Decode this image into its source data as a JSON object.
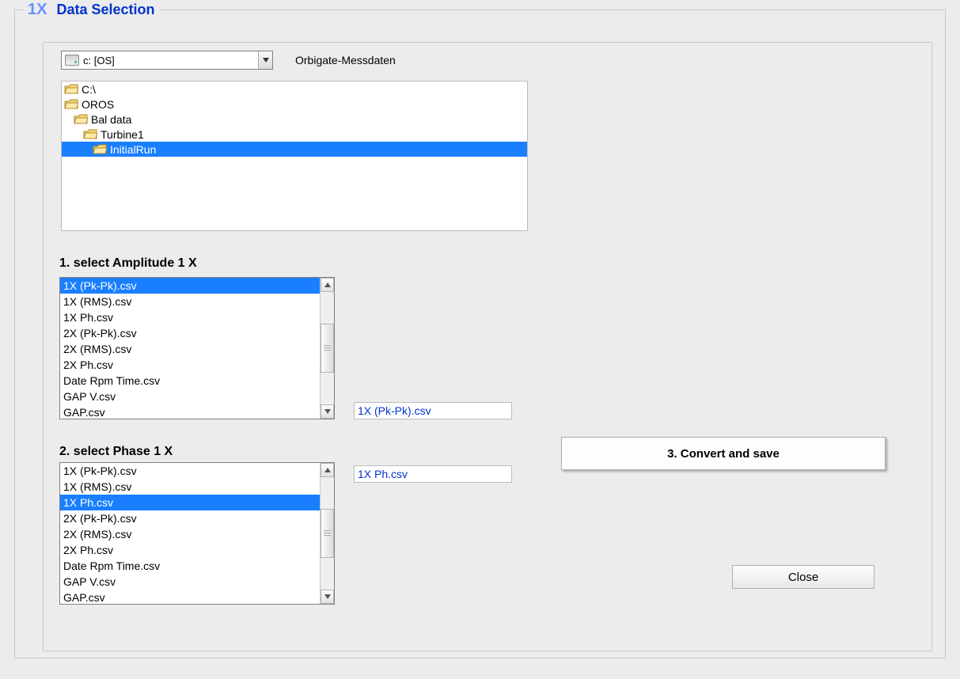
{
  "groupbox": {
    "prefix": "1X",
    "title": "Data Selection"
  },
  "drive": {
    "label": "c: [OS]"
  },
  "orbigate_label": "Orbigate-Messdaten",
  "tree": {
    "items": [
      {
        "label": "C:\\",
        "indent": 3,
        "open": true,
        "selected": false
      },
      {
        "label": "OROS",
        "indent": 3,
        "open": true,
        "selected": false
      },
      {
        "label": "Bal data",
        "indent": 15,
        "open": true,
        "selected": false
      },
      {
        "label": "Turbine1",
        "indent": 27,
        "open": true,
        "selected": false
      },
      {
        "label": "InitialRun",
        "indent": 39,
        "open": true,
        "selected": true
      }
    ]
  },
  "section1_label": "1. select Amplitude  1 X",
  "section2_label": "2. select     Phase  1 X",
  "file_list": [
    "1X (Pk-Pk).csv",
    "1X (RMS).csv",
    "1X Ph.csv",
    "2X (Pk-Pk).csv",
    "2X (RMS).csv",
    "2X Ph.csv",
    "Date Rpm Time.csv",
    "GAP V.csv",
    "GAP.csv"
  ],
  "amplitude_selected_index": 0,
  "phase_selected_index": 2,
  "amplitude_readout": "1X (Pk-Pk).csv",
  "phase_readout": "1X Ph.csv",
  "convert_label": "3. Convert and save",
  "close_label": "Close",
  "colors": {
    "background": "#ececec",
    "selection": "#1a7fff",
    "link_blue": "#0033cc"
  },
  "scrollbar": {
    "amplitude_thumb": {
      "top_pct": 28,
      "height_pct": 44
    },
    "phase_thumb": {
      "top_pct": 28,
      "height_pct": 44
    }
  }
}
